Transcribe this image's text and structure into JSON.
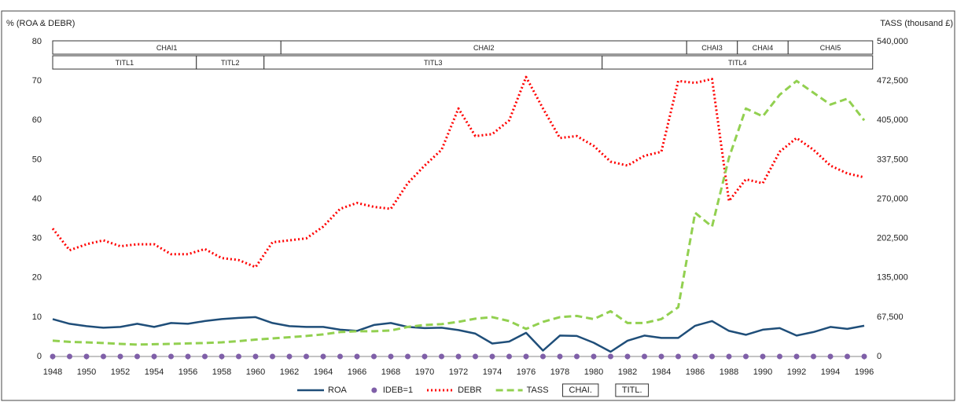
{
  "chart_data": {
    "type": "line",
    "y_label": "% (ROA & DEBR)",
    "y2_label": "TASS (thousand £)",
    "x": [
      1948,
      1949,
      1950,
      1951,
      1952,
      1953,
      1954,
      1955,
      1956,
      1957,
      1958,
      1959,
      1960,
      1961,
      1962,
      1963,
      1964,
      1965,
      1966,
      1967,
      1968,
      1969,
      1970,
      1971,
      1972,
      1973,
      1974,
      1975,
      1976,
      1977,
      1978,
      1979,
      1980,
      1981,
      1982,
      1983,
      1984,
      1985,
      1986,
      1987,
      1988,
      1989,
      1990,
      1991,
      1992,
      1993,
      1994,
      1995,
      1996
    ],
    "xlim": [
      1948,
      1996
    ],
    "xticks": [
      1948,
      1950,
      1952,
      1954,
      1956,
      1958,
      1960,
      1962,
      1964,
      1966,
      1968,
      1970,
      1972,
      1974,
      1976,
      1978,
      1980,
      1982,
      1984,
      1986,
      1988,
      1990,
      1992,
      1994,
      1996
    ],
    "ylim": [
      0,
      80
    ],
    "yticks": [
      0,
      10,
      20,
      30,
      40,
      50,
      60,
      70,
      80
    ],
    "y2lim": [
      0,
      540000
    ],
    "y2ticks": [
      0,
      {
        "value": 67500,
        "label": "67,500"
      },
      {
        "value": 135000,
        "label": "135,000"
      },
      {
        "value": 202500,
        "label": "202,500"
      },
      {
        "value": 270000,
        "label": "270,000"
      },
      {
        "value": 337500,
        "label": "337,500"
      },
      {
        "value": 405000,
        "label": "405,000"
      },
      {
        "value": 472500,
        "label": "472,500"
      },
      {
        "value": 540000,
        "label": "540,000"
      }
    ],
    "grid": false,
    "series": [
      {
        "name": "ROA",
        "color": "#1f4e79",
        "style": "solid",
        "values": [
          9.5,
          8.3,
          7.7,
          7.3,
          7.5,
          8.3,
          7.5,
          8.5,
          8.3,
          9.0,
          9.5,
          9.8,
          10.0,
          8.5,
          7.7,
          7.5,
          7.5,
          6.8,
          6.5,
          8.0,
          8.5,
          7.5,
          7.2,
          7.3,
          6.7,
          5.8,
          3.3,
          3.8,
          6.0,
          1.5,
          5.3,
          5.2,
          3.5,
          1.2,
          4.0,
          5.3,
          4.7,
          4.7,
          7.8,
          9.0,
          6.5,
          5.5,
          6.8,
          7.2,
          5.3,
          6.2,
          7.5,
          7.0,
          7.8
        ]
      },
      {
        "name": "IDEB=1",
        "color": "#7f5fa8",
        "style": "markers",
        "values": [
          0,
          0,
          0,
          0,
          0,
          0,
          0,
          0,
          0,
          0,
          0,
          0,
          0,
          0,
          0,
          0,
          0,
          0,
          0,
          0,
          0,
          0,
          0,
          0,
          0,
          0,
          0,
          0,
          0,
          0,
          0,
          0,
          0,
          0,
          0,
          0,
          0,
          0,
          0,
          0,
          0,
          0,
          0,
          0,
          0,
          0,
          0,
          0,
          0
        ]
      },
      {
        "name": "DEBR",
        "color": "#ff0000",
        "style": "dotted",
        "values": [
          32.5,
          27,
          28.5,
          29.5,
          28,
          28.5,
          28.5,
          26,
          26,
          27.3,
          25,
          24.5,
          22.7,
          29,
          29.5,
          30,
          33,
          37.5,
          39,
          38,
          37.5,
          44,
          48.5,
          52.5,
          63,
          56,
          56.5,
          60,
          71,
          63,
          55.5,
          56,
          53.5,
          49.5,
          48.5,
          51,
          52,
          70,
          69.5,
          70.5,
          39.5,
          45,
          44,
          52,
          55.5,
          52.5,
          48.5,
          46.5,
          45.5
        ]
      },
      {
        "name": "TASS",
        "color": "#92d050",
        "style": "dashed",
        "axis": "y2",
        "values": [
          27000,
          25000,
          24300,
          23000,
          21600,
          20300,
          21000,
          21600,
          22300,
          23000,
          24300,
          26300,
          29000,
          31000,
          33000,
          35100,
          37800,
          41900,
          43200,
          43200,
          44600,
          50600,
          54000,
          55400,
          59400,
          64800,
          67500,
          60800,
          47300,
          59400,
          67500,
          69500,
          64100,
          77600,
          57400,
          57400,
          64100,
          84400,
          246400,
          222800,
          340900,
          425300,
          411800,
          448900,
          472500,
          452300,
          432000,
          442100,
          405000
        ]
      }
    ],
    "bands": [
      {
        "name": "CHAI.",
        "rows": [
          {
            "label": "CHAI1",
            "start": 1948,
            "end": 1961.5
          },
          {
            "label": "CHAI2",
            "start": 1961.5,
            "end": 1985.5
          },
          {
            "label": "CHAI3",
            "start": 1985.5,
            "end": 1988.5
          },
          {
            "label": "CHAI4",
            "start": 1988.5,
            "end": 1991.5
          },
          {
            "label": "CHAI5",
            "start": 1991.5,
            "end": 1996.5
          }
        ]
      },
      {
        "name": "TITL.",
        "rows": [
          {
            "label": "TITL1",
            "start": 1948,
            "end": 1956.5
          },
          {
            "label": "TITL2",
            "start": 1956.5,
            "end": 1960.5
          },
          {
            "label": "TITL3",
            "start": 1960.5,
            "end": 1980.5
          },
          {
            "label": "TITL4",
            "start": 1980.5,
            "end": 1996.5
          }
        ]
      }
    ]
  }
}
